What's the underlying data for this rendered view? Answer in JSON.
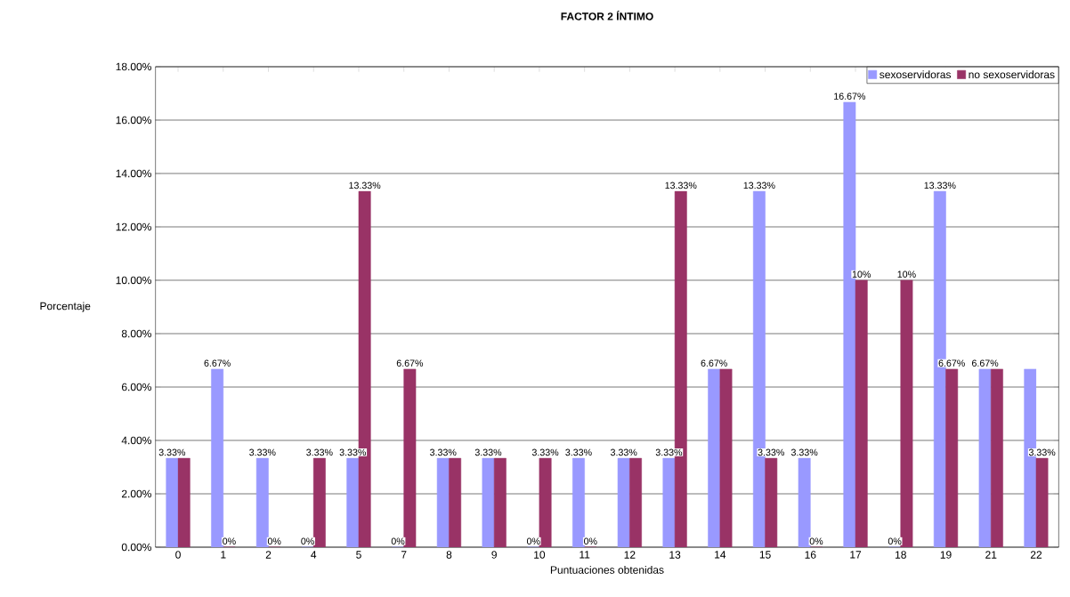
{
  "chart_data": {
    "type": "bar",
    "title": "FACTOR 2 ÍNTIMO",
    "xlabel": "Puntuaciones obtenidas",
    "ylabel": "Porcentaje",
    "categories": [
      "0",
      "1",
      "2",
      "4",
      "5",
      "7",
      "8",
      "9",
      "10",
      "11",
      "12",
      "13",
      "14",
      "15",
      "16",
      "17",
      "18",
      "19",
      "21",
      "22"
    ],
    "series": [
      {
        "name": "sexoservidoras",
        "color": "#9999ff",
        "values": [
          3.33,
          6.67,
          3.33,
          0,
          3.33,
          0,
          3.33,
          3.33,
          0,
          3.33,
          3.33,
          3.33,
          6.67,
          13.33,
          3.33,
          16.67,
          0,
          13.33,
          6.67,
          6.67
        ],
        "value_labels": [
          "3.33%",
          "6.67%",
          "3.33%",
          "0%",
          "3.33%",
          "0%",
          "3.33%",
          "3.33%",
          "0%",
          "3.33%",
          "3.33%",
          "3.33%",
          "6.67%",
          "13.33%",
          "3.33%",
          "16.67%",
          "0%",
          "13.33%",
          "6.67%",
          null
        ]
      },
      {
        "name": "no sexoservidoras",
        "color": "#993366",
        "values": [
          3.33,
          0,
          0,
          3.33,
          13.33,
          6.67,
          3.33,
          3.33,
          3.33,
          0,
          3.33,
          13.33,
          6.67,
          3.33,
          0,
          10,
          10,
          6.67,
          6.67,
          3.33
        ],
        "value_labels": [
          null,
          "0%",
          "0%",
          "3.33%",
          "13.33%",
          "6.67%",
          null,
          null,
          "3.33%",
          "0%",
          null,
          "13.33%",
          null,
          "3.33%",
          "0%",
          "10%",
          "10%",
          "6.67%",
          null,
          "3.33%"
        ]
      }
    ],
    "ylim": [
      0,
      18
    ],
    "yticks": [
      {
        "value": 0,
        "label": "0.00%"
      },
      {
        "value": 2,
        "label": "2.00%"
      },
      {
        "value": 4,
        "label": "4.00%"
      },
      {
        "value": 6,
        "label": "6.00%"
      },
      {
        "value": 8,
        "label": "8.00%"
      },
      {
        "value": 10,
        "label": "10.00%"
      },
      {
        "value": 12,
        "label": "12.00%"
      },
      {
        "value": 14,
        "label": "14.00%"
      },
      {
        "value": 16,
        "label": "16.00%"
      },
      {
        "value": 18,
        "label": "18.00%"
      }
    ],
    "grid": "y",
    "legend": "top right"
  }
}
